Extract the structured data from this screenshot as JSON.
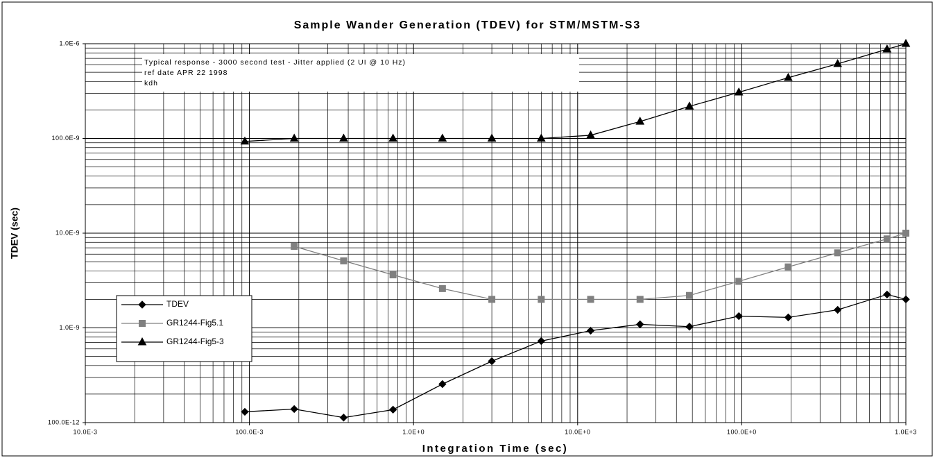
{
  "chart_data": {
    "type": "line",
    "title": "Sample Wander Generation (TDEV) for STM/MSTM-S3",
    "xlabel": "Integration Time (sec)",
    "ylabel": "TDEV (sec)",
    "annotations": [
      "Typical response - 3000 second test - Jitter applied (2 UI @ 10 Hz)",
      "ref date APR 22 1998",
      "kdh"
    ],
    "x": [
      0.09375,
      0.1875,
      0.375,
      0.75,
      1.5,
      3,
      6,
      12,
      24,
      48,
      96,
      192,
      384,
      768,
      1000
    ],
    "series": [
      {
        "name": "TDEV",
        "color": "#000000",
        "marker": "diamond",
        "values": [
          1.3e-10,
          1.39e-10,
          1.13e-10,
          1.37e-10,
          2.55e-10,
          4.45e-10,
          7.26e-10,
          9.35e-10,
          1.09e-09,
          1.03e-09,
          1.33e-09,
          1.29e-09,
          1.55e-09,
          2.25e-09,
          2e-09
        ]
      },
      {
        "name": "GR1244-Fig5.1",
        "color": "#808080",
        "marker": "square",
        "values": [
          null,
          7.26e-09,
          5.1e-09,
          3.63e-09,
          2.6e-09,
          2e-09,
          2e-09,
          2e-09,
          2e-09,
          2.2e-09,
          3.1e-09,
          4.4e-09,
          6.2e-09,
          8.7e-09,
          1e-08
        ]
      },
      {
        "name": "GR1244-Fig5-3",
        "color": "#000000",
        "marker": "triangle",
        "values": [
          9.3e-08,
          1e-07,
          1e-07,
          1e-07,
          1e-07,
          1e-07,
          1e-07,
          1.08e-07,
          1.51e-07,
          2.18e-07,
          3.07e-07,
          4.38e-07,
          6.13e-07,
          8.74e-07,
          1e-06
        ]
      }
    ],
    "xscale": "log",
    "yscale": "log",
    "xlim": [
      0.01,
      1000
    ],
    "xticks": [
      {
        "value": 0.01,
        "label": "10.0E-3"
      },
      {
        "value": 0.1,
        "label": "100.0E-3"
      },
      {
        "value": 1,
        "label": "1.0E+0"
      },
      {
        "value": 10,
        "label": "10.0E+0"
      },
      {
        "value": 100,
        "label": "100.0E+0"
      },
      {
        "value": 1000,
        "label": "1.0E+3"
      }
    ],
    "ylim": [
      1e-10,
      1e-06
    ],
    "yticks": [
      {
        "value": 1e-10,
        "label": "100.0E-12"
      },
      {
        "value": 1e-09,
        "label": "1.0E-9"
      },
      {
        "value": 1e-08,
        "label": "10.0E-9"
      },
      {
        "value": 1e-07,
        "label": "100.0E-9"
      },
      {
        "value": 1e-06,
        "label": "1.0E-6"
      }
    ],
    "grid": true,
    "minor_grid": true,
    "legend": "lower left"
  }
}
